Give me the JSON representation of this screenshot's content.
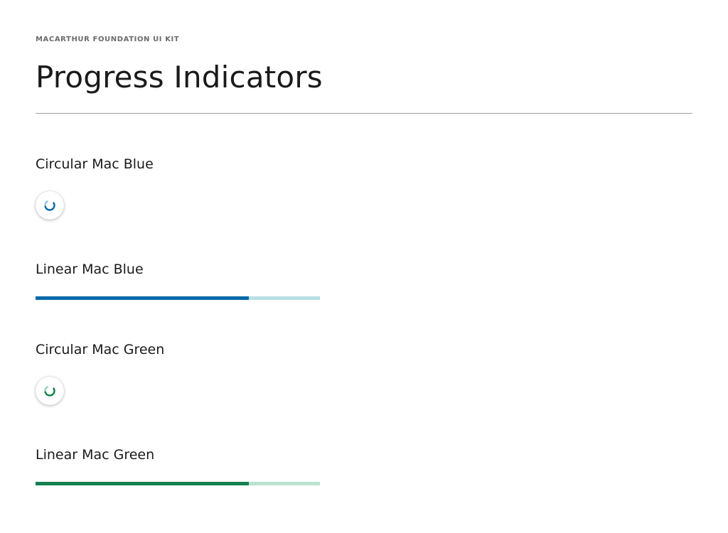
{
  "header": {
    "kit_label": "MACARTHUR FOUNDATION UI KIT",
    "title": "Progress Indicators"
  },
  "sections": [
    {
      "title": "Circular Mac Blue",
      "kind": "circular",
      "color": "#0a68a8",
      "color_light": "#8fc2e3",
      "icon": "circular-spinner-icon"
    },
    {
      "title": "Linear Mac Blue",
      "kind": "linear",
      "color": "#0a68a8",
      "track_color": "#b8dfe6",
      "progress": 0.75
    },
    {
      "title": "Circular Mac Green",
      "kind": "circular",
      "color": "#14804f",
      "color_light": "#8fd1b0",
      "icon": "circular-spinner-icon"
    },
    {
      "title": "Linear Mac Green",
      "kind": "linear",
      "color": "#14804f",
      "track_color": "#b9e2d0",
      "progress": 0.75
    }
  ]
}
